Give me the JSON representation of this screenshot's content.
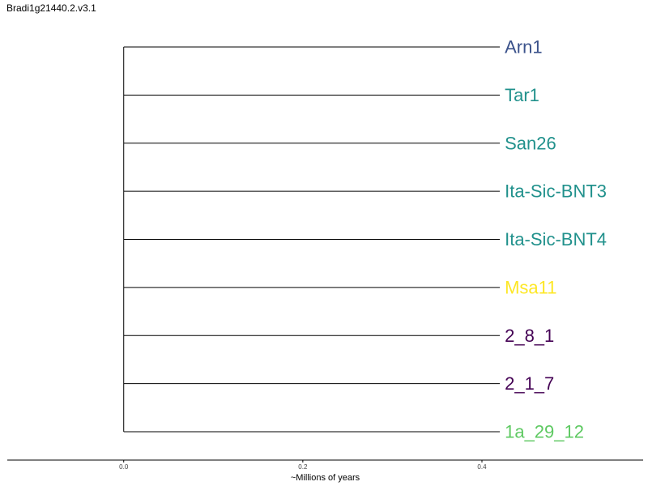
{
  "title": "Bradi1g21440.2.v3.1",
  "tree": {
    "leaves": [
      {
        "label": "Arn1",
        "color": "#3b528b"
      },
      {
        "label": "Tar1",
        "color": "#21918c"
      },
      {
        "label": "San26",
        "color": "#21918c"
      },
      {
        "label": "Ita-Sic-BNT3",
        "color": "#21918c"
      },
      {
        "label": "Ita-Sic-BNT4",
        "color": "#21918c"
      },
      {
        "label": "Msa11",
        "color": "#fde725"
      },
      {
        "label": "2_8_1",
        "color": "#440154"
      },
      {
        "label": "2_1_7",
        "color": "#440154"
      },
      {
        "label": "1a_29_12",
        "color": "#5ec962"
      }
    ],
    "branch_length": 0.42
  },
  "axis": {
    "label": "~Millions of years",
    "range": [
      -0.13,
      0.58
    ],
    "ticks": [
      {
        "value": 0.0,
        "label": "0.0"
      },
      {
        "value": 0.2,
        "label": "0.2"
      },
      {
        "value": 0.4,
        "label": "0.4"
      }
    ]
  }
}
